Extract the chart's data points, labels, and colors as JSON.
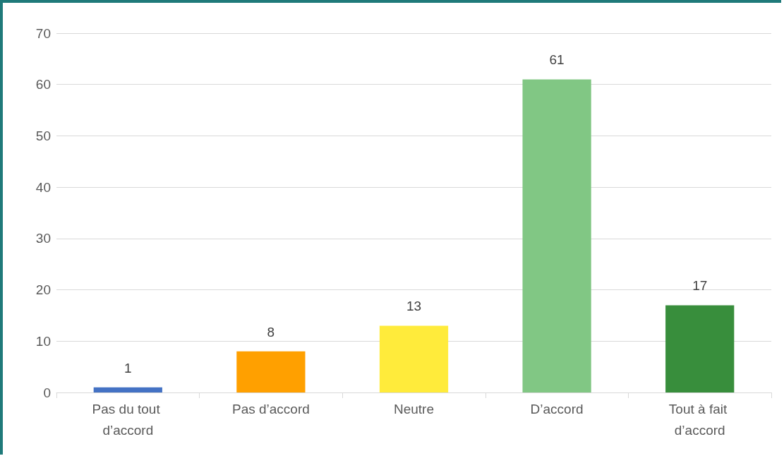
{
  "chart_data": {
    "type": "bar",
    "categories": [
      "Pas du tout d’accord",
      "Pas d’accord",
      "Neutre",
      "D’accord",
      "Tout à fait d’accord"
    ],
    "values": [
      1,
      8,
      13,
      61,
      17
    ],
    "colors": [
      "#4472c4",
      "#ffa000",
      "#ffeb3b",
      "#81c784",
      "#388e3c"
    ],
    "ylim": [
      0,
      70
    ],
    "yticks": [
      0,
      10,
      20,
      30,
      40,
      50,
      60,
      70
    ],
    "grid": "y",
    "data_labels": true
  }
}
